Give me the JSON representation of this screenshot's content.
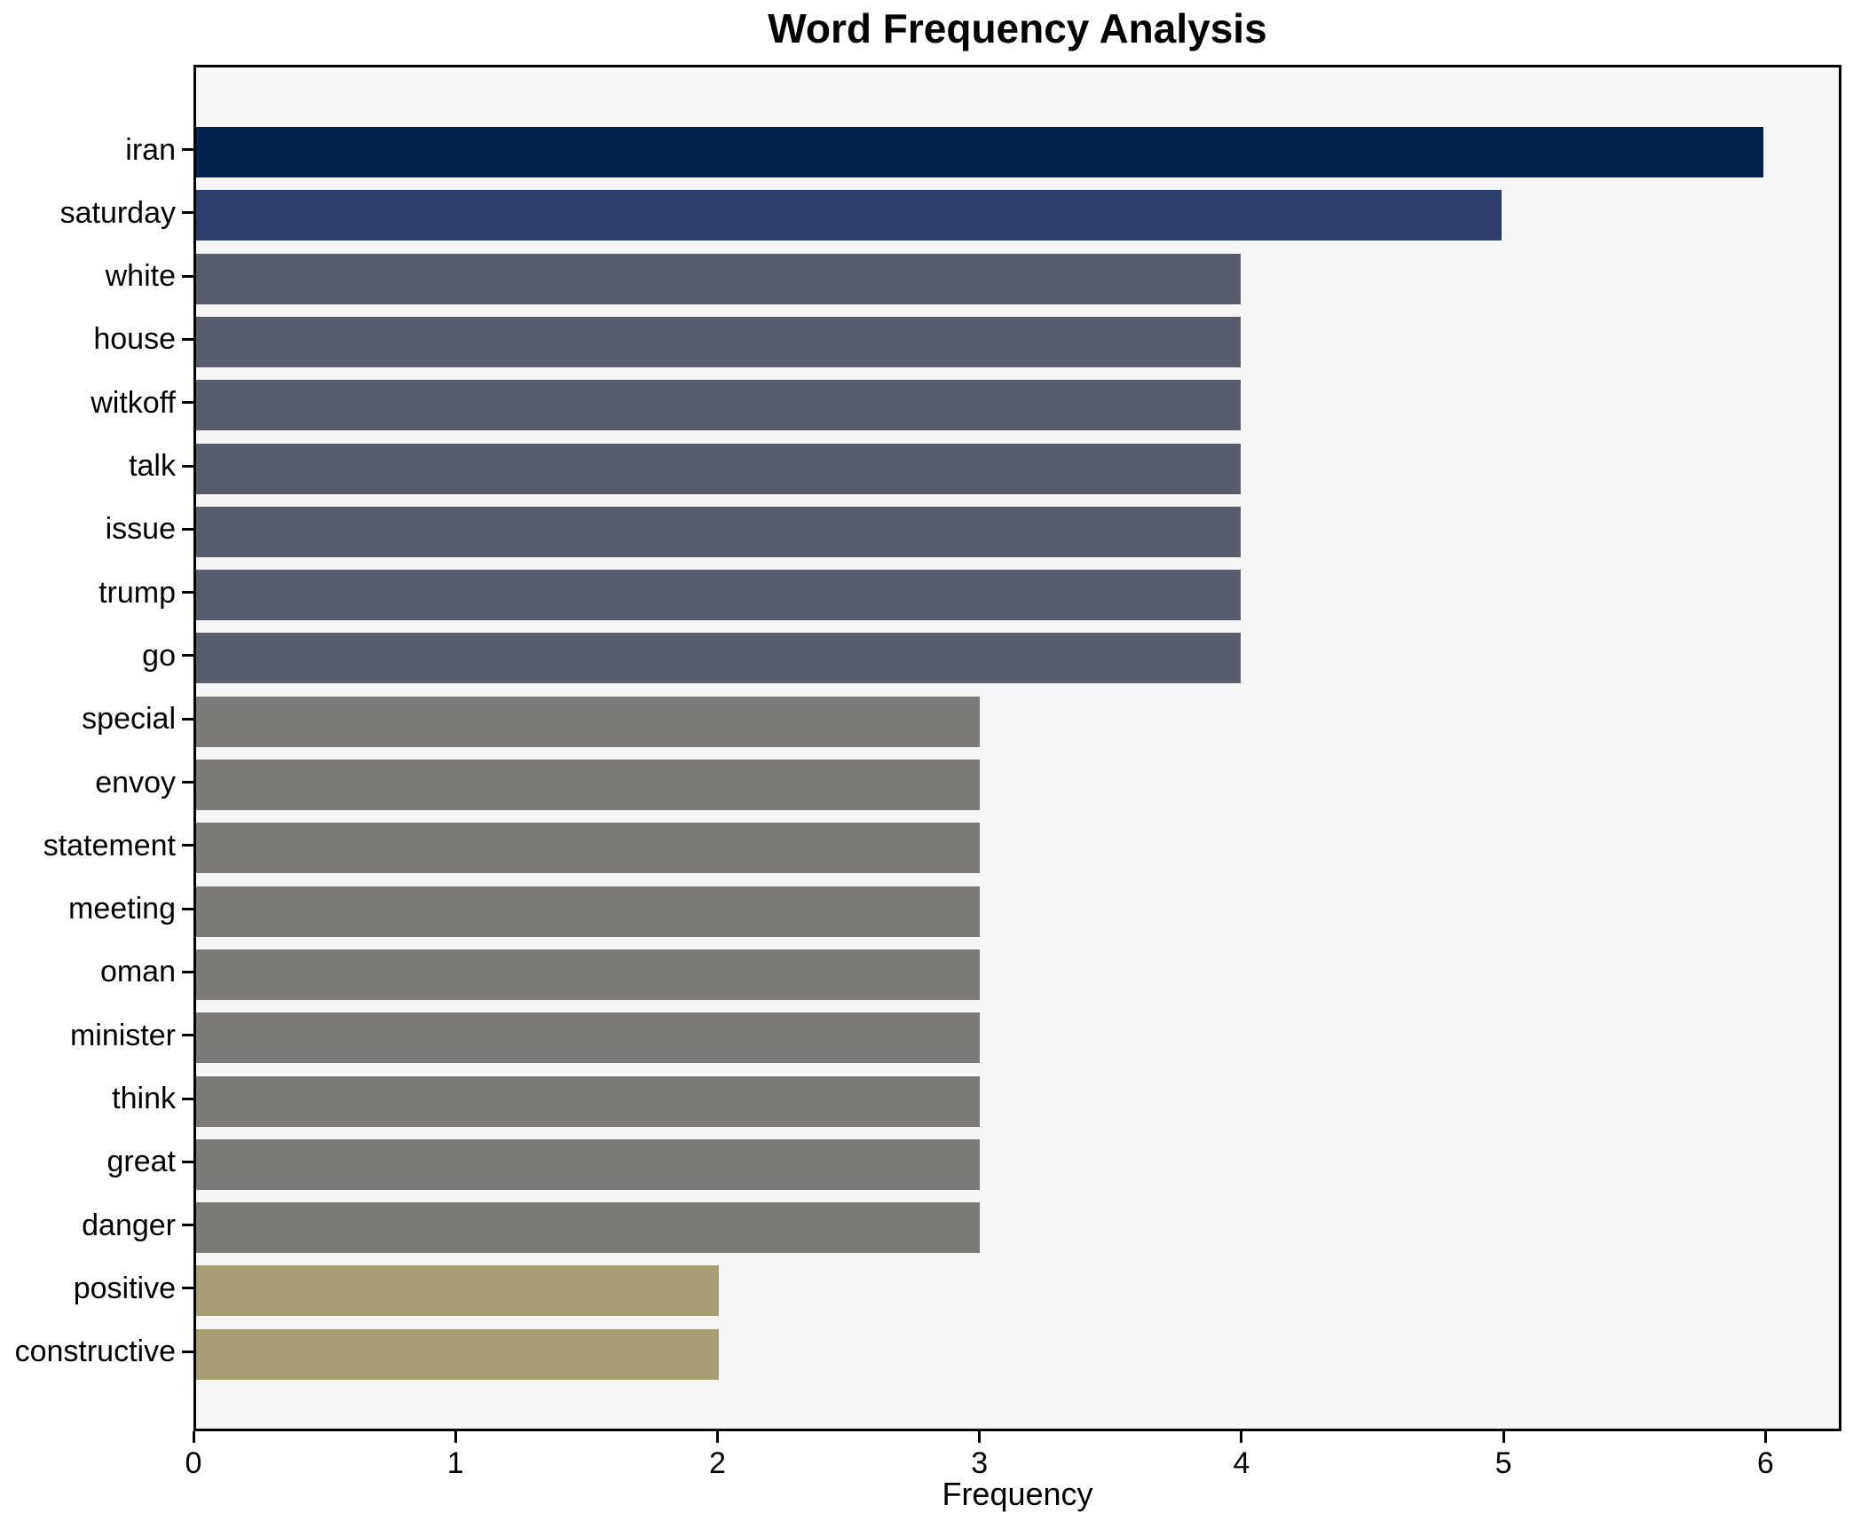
{
  "chart_data": {
    "type": "bar",
    "orientation": "horizontal",
    "title": "Word Frequency Analysis",
    "xlabel": "Frequency",
    "ylabel": "",
    "categories": [
      "iran",
      "saturday",
      "white",
      "house",
      "witkoff",
      "talk",
      "issue",
      "trump",
      "go",
      "special",
      "envoy",
      "statement",
      "meeting",
      "oman",
      "minister",
      "think",
      "great",
      "danger",
      "positive",
      "constructive"
    ],
    "values": [
      6,
      5,
      4,
      4,
      4,
      4,
      4,
      4,
      4,
      3,
      3,
      3,
      3,
      3,
      3,
      3,
      3,
      3,
      2,
      2
    ],
    "bar_colors": [
      "#02234e",
      "#2c3e69",
      "#575d6d",
      "#575d6d",
      "#575d6d",
      "#575d6d",
      "#575d6d",
      "#575d6d",
      "#575d6d",
      "#7b7a76",
      "#7b7a76",
      "#7b7a76",
      "#7b7a76",
      "#7b7a76",
      "#7b7a76",
      "#7b7a76",
      "#7b7a76",
      "#7b7a76",
      "#a69d72",
      "#a69d72"
    ],
    "color_by_value": {
      "6": "#02234e",
      "5": "#2c3e69",
      "4": "#575d6d",
      "3": "#7b7a76",
      "2": "#a69d72"
    },
    "xticks": [
      0,
      1,
      2,
      3,
      4,
      5,
      6
    ],
    "xlim": [
      0,
      6.29
    ],
    "grid": false,
    "legend": "none",
    "plot_background": "#f6f6f7",
    "figure_background": "#ffffff",
    "spine_color": "#000000"
  }
}
